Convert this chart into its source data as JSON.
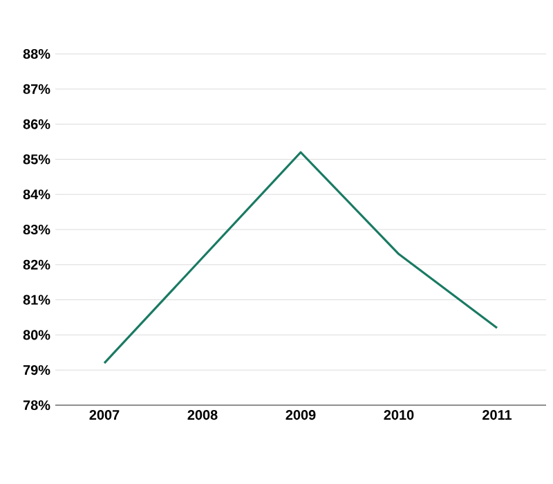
{
  "chart_data": {
    "type": "line",
    "categories": [
      "2007",
      "2008",
      "2009",
      "2010",
      "2011"
    ],
    "series": [
      {
        "color": "#1a7a63",
        "values": [
          79.2,
          82.2,
          85.2,
          82.3,
          80.2
        ]
      }
    ],
    "ylim": [
      78,
      88
    ],
    "yticks": [
      {
        "value": 78,
        "label": "78%"
      },
      {
        "value": 79,
        "label": "79%"
      },
      {
        "value": 80,
        "label": "80%"
      },
      {
        "value": 81,
        "label": "81%"
      },
      {
        "value": 82,
        "label": "82%"
      },
      {
        "value": 83,
        "label": "83%"
      },
      {
        "value": 84,
        "label": "84%"
      },
      {
        "value": 85,
        "label": "85%"
      },
      {
        "value": 86,
        "label": "86%"
      },
      {
        "value": 87,
        "label": "87%"
      },
      {
        "value": 88,
        "label": "88%"
      }
    ],
    "grid": "y",
    "marker": "none",
    "line_style": "solid"
  }
}
